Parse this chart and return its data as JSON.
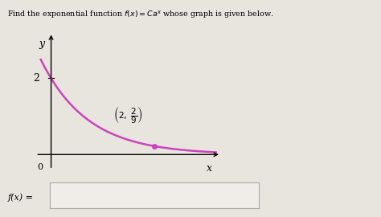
{
  "title": "Find the exponential function $f(x) = Ca^x$ whose graph is given below.",
  "curve_color": "#cc44bb",
  "point": [
    2,
    0.2222
  ],
  "y_intercept": 2,
  "y_label": "y",
  "x_label": "x",
  "origin_label": "0",
  "y_tick_label": "2",
  "fx_label": "f(x) =",
  "background_color": "#e8e4de",
  "plot_bg": "#e8e4de",
  "x_range": [
    -0.4,
    3.3
  ],
  "y_range": [
    -0.5,
    3.2
  ],
  "C": 2,
  "a": 0.3333
}
